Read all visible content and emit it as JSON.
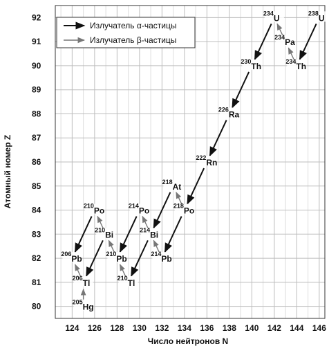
{
  "axes": {
    "xlabel": "Число нейтронов N",
    "ylabel": "Атомный номер Z",
    "xticks": [
      124,
      126,
      128,
      130,
      132,
      134,
      136,
      138,
      140,
      142,
      144,
      146
    ],
    "yticks": [
      80,
      81,
      82,
      83,
      84,
      85,
      86,
      87,
      88,
      89,
      90,
      91,
      92
    ],
    "xlim": [
      122.5,
      146.5
    ],
    "ylim": [
      79.5,
      92.5
    ],
    "grid": true
  },
  "legend": {
    "alpha_label": "Излучатель α-частицы",
    "beta_label": "Излучатель β-частицы",
    "alpha_color": "#111111",
    "beta_color": "#777777",
    "placement": "top-left"
  },
  "nuclides": [
    {
      "id": "U238",
      "mass": "238",
      "symbol": "U",
      "n": 146,
      "z": 92
    },
    {
      "id": "Th234",
      "mass": "234",
      "symbol": "Th",
      "n": 144,
      "z": 90
    },
    {
      "id": "Pa234",
      "mass": "234",
      "symbol": "Pa",
      "n": 143,
      "z": 91
    },
    {
      "id": "U234",
      "mass": "234",
      "symbol": "U",
      "n": 142,
      "z": 92
    },
    {
      "id": "Th230",
      "mass": "230",
      "symbol": "Th",
      "n": 140,
      "z": 90
    },
    {
      "id": "Ra226",
      "mass": "226",
      "symbol": "Ra",
      "n": 138,
      "z": 88
    },
    {
      "id": "Rn222",
      "mass": "222",
      "symbol": "Rn",
      "n": 136,
      "z": 86
    },
    {
      "id": "Po218",
      "mass": "218",
      "symbol": "Po",
      "n": 134,
      "z": 84
    },
    {
      "id": "At218",
      "mass": "218",
      "symbol": "At",
      "n": 133,
      "z": 85
    },
    {
      "id": "Pb214",
      "mass": "214",
      "symbol": "Pb",
      "n": 132,
      "z": 82
    },
    {
      "id": "Bi214",
      "mass": "214",
      "symbol": "Bi",
      "n": 131,
      "z": 83
    },
    {
      "id": "Po214",
      "mass": "214",
      "symbol": "Po",
      "n": 130,
      "z": 84
    },
    {
      "id": "Tl210",
      "mass": "210",
      "symbol": "Tl",
      "n": 129,
      "z": 81
    },
    {
      "id": "Pb210",
      "mass": "210",
      "symbol": "Pb",
      "n": 128,
      "z": 82
    },
    {
      "id": "Bi210",
      "mass": "210",
      "symbol": "Bi",
      "n": 127,
      "z": 83
    },
    {
      "id": "Po210",
      "mass": "210",
      "symbol": "Po",
      "n": 126,
      "z": 84
    },
    {
      "id": "Hg205",
      "mass": "205",
      "symbol": "Hg",
      "n": 125,
      "z": 80
    },
    {
      "id": "Tl206",
      "mass": "206",
      "symbol": "Tl",
      "n": 125,
      "z": 81
    },
    {
      "id": "Pb206",
      "mass": "206",
      "symbol": "Pb",
      "n": 124,
      "z": 82
    }
  ],
  "decays": [
    {
      "from": "U238",
      "to": "Th234",
      "type": "alpha"
    },
    {
      "from": "Th234",
      "to": "Pa234",
      "type": "beta"
    },
    {
      "from": "Pa234",
      "to": "U234",
      "type": "beta"
    },
    {
      "from": "U234",
      "to": "Th230",
      "type": "alpha"
    },
    {
      "from": "Th230",
      "to": "Ra226",
      "type": "alpha"
    },
    {
      "from": "Ra226",
      "to": "Rn222",
      "type": "alpha"
    },
    {
      "from": "Rn222",
      "to": "Po218",
      "type": "alpha"
    },
    {
      "from": "Po218",
      "to": "At218",
      "type": "beta"
    },
    {
      "from": "Po218",
      "to": "Pb214",
      "type": "alpha"
    },
    {
      "from": "At218",
      "to": "Bi214",
      "type": "alpha"
    },
    {
      "from": "Pb214",
      "to": "Bi214",
      "type": "beta"
    },
    {
      "from": "Bi214",
      "to": "Po214",
      "type": "beta"
    },
    {
      "from": "Bi214",
      "to": "Tl210",
      "type": "alpha"
    },
    {
      "from": "Po214",
      "to": "Pb210",
      "type": "alpha"
    },
    {
      "from": "Tl210",
      "to": "Pb210",
      "type": "beta"
    },
    {
      "from": "Pb210",
      "to": "Bi210",
      "type": "beta"
    },
    {
      "from": "Bi210",
      "to": "Po210",
      "type": "beta"
    },
    {
      "from": "Bi210",
      "to": "Tl206",
      "type": "alpha"
    },
    {
      "from": "Po210",
      "to": "Pb206",
      "type": "alpha"
    },
    {
      "from": "Tl206",
      "to": "Pb206",
      "type": "beta"
    },
    {
      "from": "Hg205",
      "to": "Tl206",
      "type": "beta"
    }
  ]
}
